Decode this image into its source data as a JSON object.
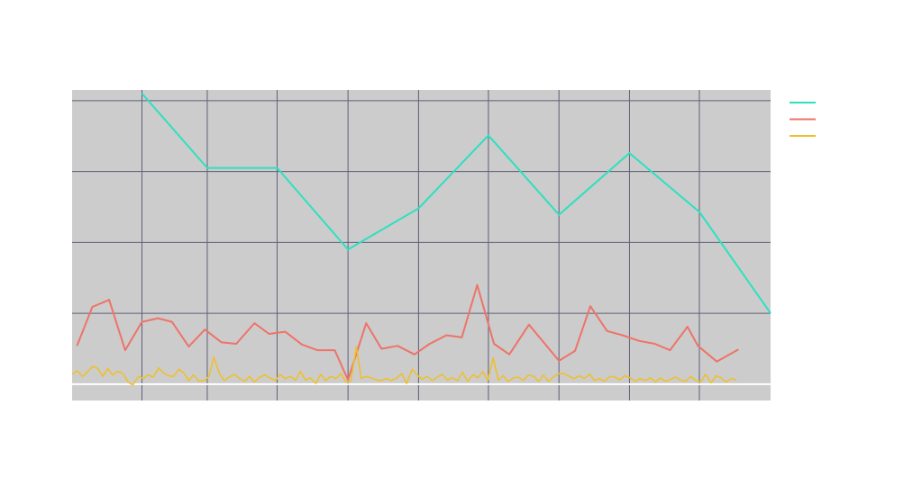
{
  "chart_data": {
    "type": "line",
    "background_color": "#cccccc",
    "grid_color": "#5f5f78",
    "zero_line_color": "#ffffff",
    "grid": true,
    "legend_placement": "top-right",
    "xlim": [
      0,
      100
    ],
    "ylim": [
      -2.3,
      41.5
    ],
    "series": [
      {
        "color": "#2ee0c0",
        "x": [
          10,
          19.35,
          29.35,
          39.5,
          49.6,
          59.6,
          69.7,
          79.8,
          89.8,
          100
        ],
        "y": [
          41,
          30.5,
          30.5,
          19,
          24.8,
          35.1,
          23.9,
          32.6,
          24.3,
          10
        ]
      },
      {
        "color": "#ee7368",
        "x": [
          0.7,
          2.9,
          5.3,
          7.6,
          10,
          12.3,
          14.3,
          16.7,
          19,
          21.4,
          23.5,
          26.1,
          28.2,
          30.5,
          32.9,
          35.1,
          37.6,
          39.5,
          42.1,
          44.3,
          46.6,
          49,
          51.2,
          53.6,
          55.8,
          58,
          60.4,
          62.6,
          65.4,
          69.7,
          72,
          74.2,
          76.6,
          78.8,
          81.2,
          83.4,
          85.6,
          88.1,
          89.6,
          92.3,
          95.4
        ],
        "y": [
          5.4,
          10.9,
          11.9,
          4.8,
          8.8,
          9.3,
          8.8,
          5.3,
          7.7,
          5.9,
          5.7,
          8.6,
          7.1,
          7.4,
          5.6,
          4.8,
          4.8,
          0.6,
          8.6,
          5,
          5.4,
          4.2,
          5.7,
          6.9,
          6.6,
          14,
          5.7,
          4.2,
          8.4,
          3.3,
          4.7,
          11,
          7.5,
          6.9,
          6.1,
          5.7,
          4.8,
          8.1,
          5.4,
          3.2,
          4.9
        ]
      },
      {
        "color": "#eec02e",
        "x": [
          0,
          0.7,
          1.5,
          2.2,
          2.9,
          3.6,
          4.4,
          5.1,
          5.8,
          6.5,
          7.3,
          8,
          8.7,
          9.5,
          10.2,
          10.9,
          11.6,
          12.4,
          13.1,
          13.8,
          14.5,
          15.3,
          16,
          16.7,
          17.4,
          18.2,
          18.9,
          19.6,
          20.3,
          21.1,
          21.8,
          22.5,
          23.2,
          24,
          24.7,
          25.4,
          26.1,
          26.9,
          27.6,
          28.3,
          29.1,
          29.8,
          30.5,
          31.2,
          32,
          32.7,
          33.4,
          34.1,
          34.9,
          35.6,
          36.3,
          37,
          37.8,
          38.5,
          39.2,
          39.9,
          40.7,
          41.4,
          42.1,
          42.8,
          43.6,
          44.3,
          45,
          45.7,
          46.5,
          47.2,
          47.9,
          48.7,
          49.4,
          50.1,
          50.8,
          51.6,
          52.3,
          53,
          53.7,
          54.5,
          55.2,
          55.9,
          56.6,
          57.4,
          58.1,
          58.8,
          59.5,
          60.3,
          61,
          61.7,
          62.4,
          63.2,
          63.9,
          64.6,
          65.3,
          66.1,
          66.8,
          67.5,
          68.2,
          69,
          69.7,
          70.4,
          71.2,
          71.9,
          72.6,
          73.3,
          74.1,
          74.8,
          75.5,
          76.2,
          77,
          77.7,
          78.4,
          79.1,
          79.9,
          80.6,
          81.3,
          82,
          82.8,
          83.5,
          84.2,
          84.9,
          85.7,
          86.4,
          87.1,
          87.8,
          88.6,
          89.3,
          90,
          90.7,
          91.5,
          92.2,
          92.9,
          93.6,
          94.4,
          95.1
        ],
        "y": [
          1.4,
          1.9,
          1.1,
          1.7,
          1.5,
          2.3,
          1.1,
          2.2,
          1.3,
          1.8,
          1.5,
          0.3,
          -0.1,
          1.1,
          0.8,
          1.3,
          1,
          2.3,
          1.6,
          1.2,
          1.1,
          2.1,
          1.6,
          0.5,
          1.3,
          0.4,
          0.5,
          1.1,
          0.7,
          1.5,
          0.5,
          1,
          1.4,
          0.8,
          0.4,
          1.1,
          0.3,
          1,
          1.3,
          0.9,
          0.5,
          1.4,
          0.8,
          1.1,
          0.6,
          1.8,
          0.6,
          0.9,
          0.1,
          1.4,
          0.5,
          1.1,
          0.8,
          1.5,
          0.3,
          0.4,
          0.3,
          0.8,
          1.1,
          0.9,
          0.6,
          0.5,
          0.8,
          0.5,
          0.9,
          1.5,
          0.1,
          0.8,
          1.3,
          0.7,
          1.1,
          0.5,
          1,
          1.4,
          0.6,
          0.9,
          0.5,
          1.7,
          0.4,
          1.3,
          0.9,
          1.8,
          0.5,
          1,
          0.6,
          1.2,
          0.4,
          0.9,
          1,
          0.5,
          1.3,
          1.1,
          0.4,
          1.3,
          0.4,
          1.1,
          1.5,
          1.5,
          1.1,
          0.8,
          1.2,
          0.8,
          1.4,
          0.5,
          0.8,
          0.4,
          1.1,
          1,
          0.6,
          1.2,
          0.9,
          0.4,
          0.8,
          0.5,
          0.9,
          0.3,
          0.9,
          0.4,
          0.7,
          1,
          0.6,
          0.4,
          1.1,
          0.5,
          0.3,
          1.4,
          0.2,
          1.2,
          0.9,
          0.3,
          0.8,
          0.6
        ],
        "spikes": [
          [
            28,
            3.8
          ],
          [
            56,
            5.3
          ],
          [
            83,
            3.7
          ],
          [
            67,
            2.1
          ],
          [
            4,
            2.5
          ]
        ]
      }
    ]
  }
}
